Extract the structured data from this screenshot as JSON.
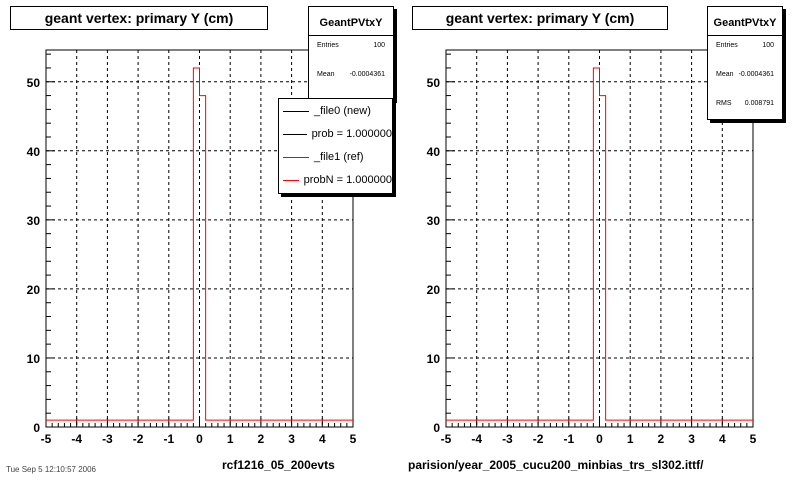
{
  "panels": [
    {
      "title": "geant vertex: primary Y (cm)",
      "stats": {
        "name": "GeantPVtxY",
        "rows": [
          {
            "label": "Entries",
            "value": "100"
          },
          {
            "label": "Mean",
            "value": "-0.0004361"
          }
        ]
      },
      "legend": [
        {
          "label": "_file0 (new)",
          "color": "#000000"
        },
        {
          "label": "prob = 1.000000",
          "color": "#000000"
        },
        {
          "label": "_file1 (ref)",
          "color": "#ff0000"
        },
        {
          "label": "probN = 1.000000",
          "color": "#ff0000"
        }
      ],
      "footer": "rcf1216_05_200evts"
    },
    {
      "title": "geant vertex: primary Y (cm)",
      "stats": {
        "name": "GeantPVtxY",
        "rows": [
          {
            "label": "Entries",
            "value": "100"
          },
          {
            "label": "Mean",
            "value": "-0.0004361"
          },
          {
            "label": "RMS",
            "value": "0.008791"
          }
        ]
      },
      "footer": "parision/year_2005_cucu200_minbias_trs_sl302.ittf/"
    }
  ],
  "footer_left": "Tue Sep  5 12:10:57 2006",
  "chart_data": [
    {
      "type": "bar",
      "title": "geant vertex: primary Y (cm)",
      "xlim": [
        -5,
        5
      ],
      "ylim": [
        0,
        54.6
      ],
      "xticks": [
        -5,
        -4,
        -3,
        -2,
        -1,
        0,
        1,
        2,
        3,
        4,
        5
      ],
      "yticks": [
        0,
        10,
        20,
        30,
        40,
        50
      ],
      "grid": true,
      "baseline": 1,
      "bins": [
        {
          "x0": -0.2,
          "x1": 0.0,
          "y": 52
        },
        {
          "x0": 0.0,
          "x1": 0.2,
          "y": 48
        }
      ],
      "series_color": "#ff0000"
    },
    {
      "type": "bar",
      "title": "geant vertex: primary Y (cm)",
      "xlim": [
        -5,
        5
      ],
      "ylim": [
        0,
        54.6
      ],
      "xticks": [
        -5,
        -4,
        -3,
        -2,
        -1,
        0,
        1,
        2,
        3,
        4,
        5
      ],
      "yticks": [
        0,
        10,
        20,
        30,
        40,
        50
      ],
      "grid": true,
      "baseline": 1,
      "bins": [
        {
          "x0": -0.2,
          "x1": 0.0,
          "y": 52
        },
        {
          "x0": 0.0,
          "x1": 0.2,
          "y": 48
        }
      ],
      "series_color": "#ff0000"
    }
  ]
}
